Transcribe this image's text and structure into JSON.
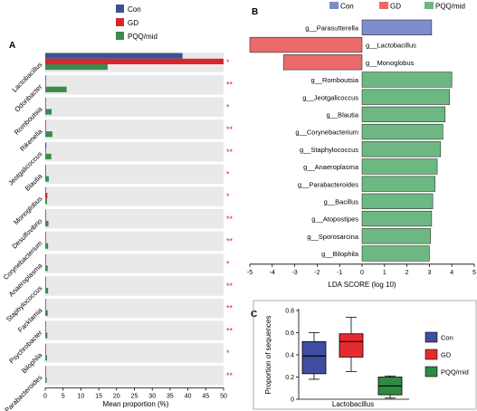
{
  "colors": {
    "con": "#3c5293",
    "gd": "#d9262d",
    "pqq": "#3b8b4d",
    "star": "#d9262d",
    "rowbg": "#e9e9e9",
    "lda_con": "#7d8ccb",
    "lda_gd": "#ea6a6c",
    "lda_pqq": "#6db882",
    "box_con": "#3f4ea3",
    "box_gd": "#e62b2f",
    "box_pqq": "#2f8a43"
  },
  "chart_data": [
    {
      "type": "bar",
      "panel": "A",
      "legend": [
        "Con",
        "GD",
        "PQQ/mid"
      ],
      "legend_position": "top",
      "xlabel": "Mean proportion (%)",
      "xlim": [
        0,
        50
      ],
      "xticks": [
        "0",
        "5",
        "10",
        "15",
        "20",
        "25",
        "30",
        "35",
        "40",
        "45",
        "50"
      ],
      "categories": [
        "Lactobacillus",
        "Odoribacter",
        "Romboutsia",
        "Rikenella",
        "Jeotgalicoccus",
        "Blautia",
        "Monoglobus",
        "Desulfovibrio",
        "Corynebacterium",
        "Anaeroplasma",
        "Staphylococcus",
        "Facklamia",
        "Psychrobacter",
        "Bilophila",
        "Parabacteroides"
      ],
      "series": [
        {
          "name": "Con",
          "values": [
            38.5,
            0.2,
            0.2,
            0.2,
            0.3,
            0.2,
            0.2,
            0.1,
            0.2,
            0.1,
            0.1,
            0.1,
            0.1,
            0.1,
            0.1
          ]
        },
        {
          "name": "GD",
          "values": [
            50,
            0.1,
            0.1,
            0.1,
            0.2,
            0.1,
            0.6,
            0.1,
            0.1,
            0.1,
            0.1,
            0.1,
            0.1,
            0.1,
            0.1
          ]
        },
        {
          "name": "PQQ/mid",
          "values": [
            17.5,
            6.0,
            1.8,
            2.0,
            1.7,
            1.0,
            0.5,
            0.9,
            0.8,
            0.7,
            0.8,
            0.7,
            0.6,
            0.5,
            0.4
          ]
        }
      ],
      "significance": [
        "*",
        "**",
        "*",
        "**",
        "**",
        "*",
        "*",
        "**",
        "**",
        "*",
        "**",
        "**",
        "**",
        "*",
        "**"
      ]
    },
    {
      "type": "bar",
      "panel": "B",
      "legend": [
        "Con",
        "GD",
        "PQQ/mid"
      ],
      "legend_position": "top",
      "xlabel": "LDA SCORE (log 10)",
      "xlim": [
        -5,
        5
      ],
      "xticks": [
        "-5",
        "-4",
        "-3",
        "-2",
        "-1",
        "0",
        "1",
        "2",
        "3",
        "4",
        "5"
      ],
      "categories": [
        "g__Parasutterella",
        "g__Lactobacillus",
        "g__Monoglobus",
        "g__Romboutsia",
        "g__Jeotgalicoccus",
        "g__Blautia",
        "g__Corynebacterium",
        "g__Staphylococcus",
        "g__Anaeroplasma",
        "g__Parabacteroides",
        "g__Bacillus",
        "g__Atopostipes",
        "g__Sporosarcina",
        "g__Bilophila"
      ],
      "groups": [
        "Con",
        "GD",
        "GD",
        "PQQ/mid",
        "PQQ/mid",
        "PQQ/mid",
        "PQQ/mid",
        "PQQ/mid",
        "PQQ/mid",
        "PQQ/mid",
        "PQQ/mid",
        "PQQ/mid",
        "PQQ/mid",
        "PQQ/mid"
      ],
      "values": [
        3.1,
        -5.0,
        -3.5,
        4.0,
        3.9,
        3.7,
        3.6,
        3.5,
        3.35,
        3.25,
        3.15,
        3.1,
        3.05,
        3.0
      ]
    },
    {
      "type": "box",
      "panel": "C",
      "ylabel": "Proportion of sequences",
      "xlabel": "Lactobacillus",
      "ylim": [
        0,
        0.8
      ],
      "yticks": [
        "0",
        "0.2",
        "0.4",
        "0.6",
        "0.8"
      ],
      "legend": [
        "Con",
        "GD",
        "PQQ/mid"
      ],
      "legend_position": "right",
      "boxes": [
        {
          "name": "Con",
          "min": 0.18,
          "q1": 0.23,
          "median": 0.39,
          "q3": 0.52,
          "max": 0.6
        },
        {
          "name": "GD",
          "min": 0.25,
          "q1": 0.38,
          "median": 0.52,
          "q3": 0.59,
          "max": 0.74
        },
        {
          "name": "PQQ/mid",
          "min": 0.01,
          "q1": 0.04,
          "median": 0.12,
          "q3": 0.2,
          "max": 0.21
        }
      ]
    }
  ]
}
